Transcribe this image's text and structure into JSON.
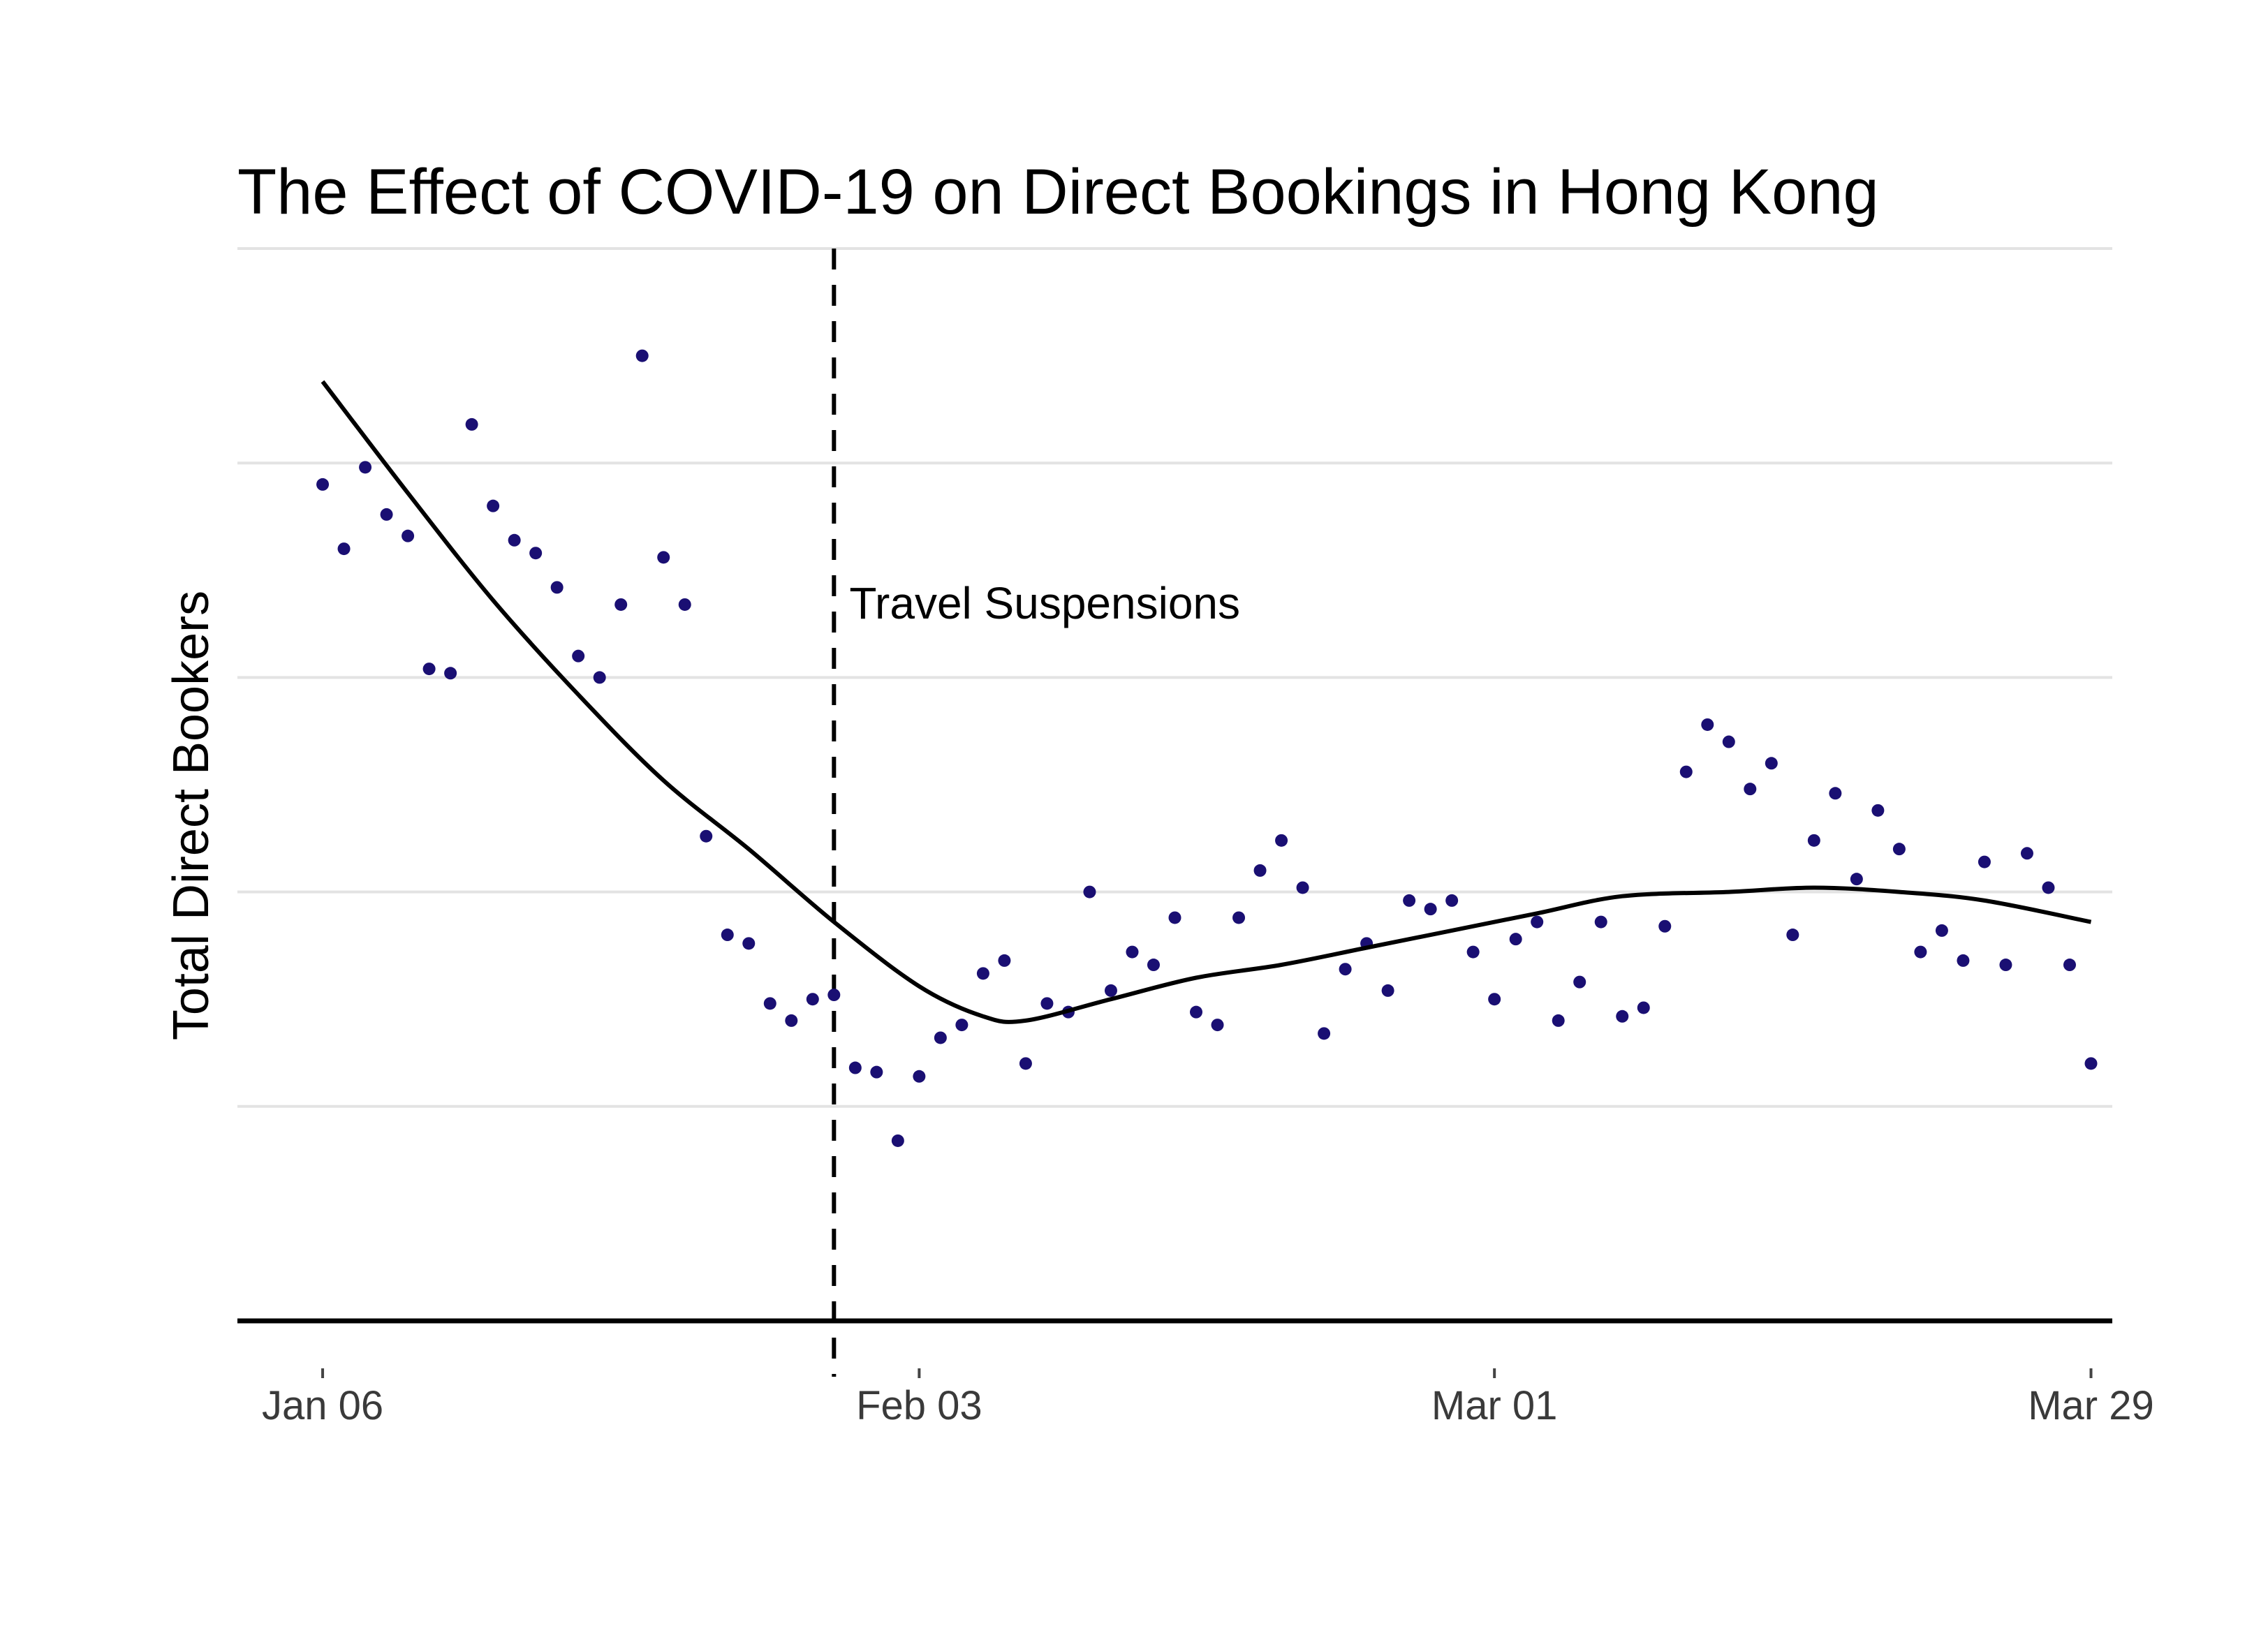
{
  "chart_data": {
    "type": "scatter",
    "title": "The Effect of COVID-19 on Direct Bookings in Hong Kong",
    "xlabel": "",
    "ylabel": "Total Direct Bookers",
    "x_axis": {
      "type": "date",
      "range": [
        "2020-01-02",
        "2020-03-30"
      ],
      "ticks": [
        {
          "date": "2020-01-06",
          "label": "Jan 06"
        },
        {
          "date": "2020-02-03",
          "label": "Feb 03"
        },
        {
          "date": "2020-03-01",
          "label": "Mar 01"
        },
        {
          "date": "2020-03-29",
          "label": "Mar 29"
        }
      ]
    },
    "y_axis": {
      "range": [
        0,
        250
      ],
      "tick_labels_shown": false,
      "gridlines": [
        50,
        100,
        150,
        200,
        250
      ]
    },
    "grid": "horizontal",
    "marker_color": "#1a0f73",
    "line_color": "#000000",
    "series": [
      {
        "kind": "points",
        "points": [
          {
            "x": "2020-01-06",
            "y": 195
          },
          {
            "x": "2020-01-07",
            "y": 180
          },
          {
            "x": "2020-01-08",
            "y": 199
          },
          {
            "x": "2020-01-09",
            "y": 188
          },
          {
            "x": "2020-01-10",
            "y": 183
          },
          {
            "x": "2020-01-11",
            "y": 152
          },
          {
            "x": "2020-01-12",
            "y": 151
          },
          {
            "x": "2020-01-13",
            "y": 209
          },
          {
            "x": "2020-01-14",
            "y": 190
          },
          {
            "x": "2020-01-15",
            "y": 182
          },
          {
            "x": "2020-01-16",
            "y": 179
          },
          {
            "x": "2020-01-17",
            "y": 171
          },
          {
            "x": "2020-01-18",
            "y": 155
          },
          {
            "x": "2020-01-19",
            "y": 150
          },
          {
            "x": "2020-01-20",
            "y": 167
          },
          {
            "x": "2020-01-21",
            "y": 225
          },
          {
            "x": "2020-01-22",
            "y": 178
          },
          {
            "x": "2020-01-23",
            "y": 167
          },
          {
            "x": "2020-01-24",
            "y": 113
          },
          {
            "x": "2020-01-25",
            "y": 90
          },
          {
            "x": "2020-01-26",
            "y": 88
          },
          {
            "x": "2020-01-27",
            "y": 74
          },
          {
            "x": "2020-01-28",
            "y": 70
          },
          {
            "x": "2020-01-29",
            "y": 75
          },
          {
            "x": "2020-01-30",
            "y": 76
          },
          {
            "x": "2020-01-31",
            "y": 59
          },
          {
            "x": "2020-02-01",
            "y": 58
          },
          {
            "x": "2020-02-02",
            "y": 42
          },
          {
            "x": "2020-02-03",
            "y": 57
          },
          {
            "x": "2020-02-04",
            "y": 66
          },
          {
            "x": "2020-02-05",
            "y": 69
          },
          {
            "x": "2020-02-06",
            "y": 81
          },
          {
            "x": "2020-02-07",
            "y": 84
          },
          {
            "x": "2020-02-08",
            "y": 60
          },
          {
            "x": "2020-02-09",
            "y": 74
          },
          {
            "x": "2020-02-10",
            "y": 72
          },
          {
            "x": "2020-02-11",
            "y": 100
          },
          {
            "x": "2020-02-12",
            "y": 77
          },
          {
            "x": "2020-02-13",
            "y": 86
          },
          {
            "x": "2020-02-14",
            "y": 83
          },
          {
            "x": "2020-02-15",
            "y": 94
          },
          {
            "x": "2020-02-16",
            "y": 72
          },
          {
            "x": "2020-02-17",
            "y": 69
          },
          {
            "x": "2020-02-18",
            "y": 94
          },
          {
            "x": "2020-02-19",
            "y": 105
          },
          {
            "x": "2020-02-20",
            "y": 112
          },
          {
            "x": "2020-02-21",
            "y": 101
          },
          {
            "x": "2020-02-22",
            "y": 67
          },
          {
            "x": "2020-02-23",
            "y": 82
          },
          {
            "x": "2020-02-24",
            "y": 88
          },
          {
            "x": "2020-02-25",
            "y": 77
          },
          {
            "x": "2020-02-26",
            "y": 98
          },
          {
            "x": "2020-02-27",
            "y": 96
          },
          {
            "x": "2020-02-28",
            "y": 98
          },
          {
            "x": "2020-02-29",
            "y": 86
          },
          {
            "x": "2020-03-01",
            "y": 75
          },
          {
            "x": "2020-03-02",
            "y": 89
          },
          {
            "x": "2020-03-03",
            "y": 93
          },
          {
            "x": "2020-03-04",
            "y": 70
          },
          {
            "x": "2020-03-05",
            "y": 79
          },
          {
            "x": "2020-03-06",
            "y": 93
          },
          {
            "x": "2020-03-07",
            "y": 71
          },
          {
            "x": "2020-03-08",
            "y": 73
          },
          {
            "x": "2020-03-09",
            "y": 92
          },
          {
            "x": "2020-03-10",
            "y": 128
          },
          {
            "x": "2020-03-11",
            "y": 139
          },
          {
            "x": "2020-03-12",
            "y": 135
          },
          {
            "x": "2020-03-13",
            "y": 124
          },
          {
            "x": "2020-03-14",
            "y": 130
          },
          {
            "x": "2020-03-15",
            "y": 90
          },
          {
            "x": "2020-03-16",
            "y": 112
          },
          {
            "x": "2020-03-17",
            "y": 123
          },
          {
            "x": "2020-03-18",
            "y": 103
          },
          {
            "x": "2020-03-19",
            "y": 119
          },
          {
            "x": "2020-03-20",
            "y": 110
          },
          {
            "x": "2020-03-21",
            "y": 86
          },
          {
            "x": "2020-03-22",
            "y": 91
          },
          {
            "x": "2020-03-23",
            "y": 84
          },
          {
            "x": "2020-03-24",
            "y": 107
          },
          {
            "x": "2020-03-25",
            "y": 83
          },
          {
            "x": "2020-03-26",
            "y": 109
          },
          {
            "x": "2020-03-27",
            "y": 101
          },
          {
            "x": "2020-03-28",
            "y": 83
          },
          {
            "x": "2020-03-29",
            "y": 60
          }
        ]
      },
      {
        "kind": "smoothed-trend",
        "points": [
          {
            "x": "2020-01-06",
            "y": 219
          },
          {
            "x": "2020-01-10",
            "y": 193
          },
          {
            "x": "2020-01-14",
            "y": 168
          },
          {
            "x": "2020-01-18",
            "y": 146
          },
          {
            "x": "2020-01-22",
            "y": 126
          },
          {
            "x": "2020-01-26",
            "y": 110
          },
          {
            "x": "2020-01-30",
            "y": 93
          },
          {
            "x": "2020-02-03",
            "y": 78
          },
          {
            "x": "2020-02-06",
            "y": 71
          },
          {
            "x": "2020-02-08",
            "y": 70
          },
          {
            "x": "2020-02-12",
            "y": 75
          },
          {
            "x": "2020-02-16",
            "y": 80
          },
          {
            "x": "2020-02-20",
            "y": 83
          },
          {
            "x": "2020-02-24",
            "y": 87
          },
          {
            "x": "2020-02-28",
            "y": 91
          },
          {
            "x": "2020-03-03",
            "y": 95
          },
          {
            "x": "2020-03-07",
            "y": 99
          },
          {
            "x": "2020-03-12",
            "y": 100
          },
          {
            "x": "2020-03-16",
            "y": 101
          },
          {
            "x": "2020-03-20",
            "y": 100
          },
          {
            "x": "2020-03-24",
            "y": 98
          },
          {
            "x": "2020-03-29",
            "y": 93
          }
        ]
      }
    ],
    "annotations": [
      {
        "type": "vline",
        "x": "2020-01-30",
        "style": "dashed",
        "label": "Travel Suspensions"
      }
    ]
  }
}
